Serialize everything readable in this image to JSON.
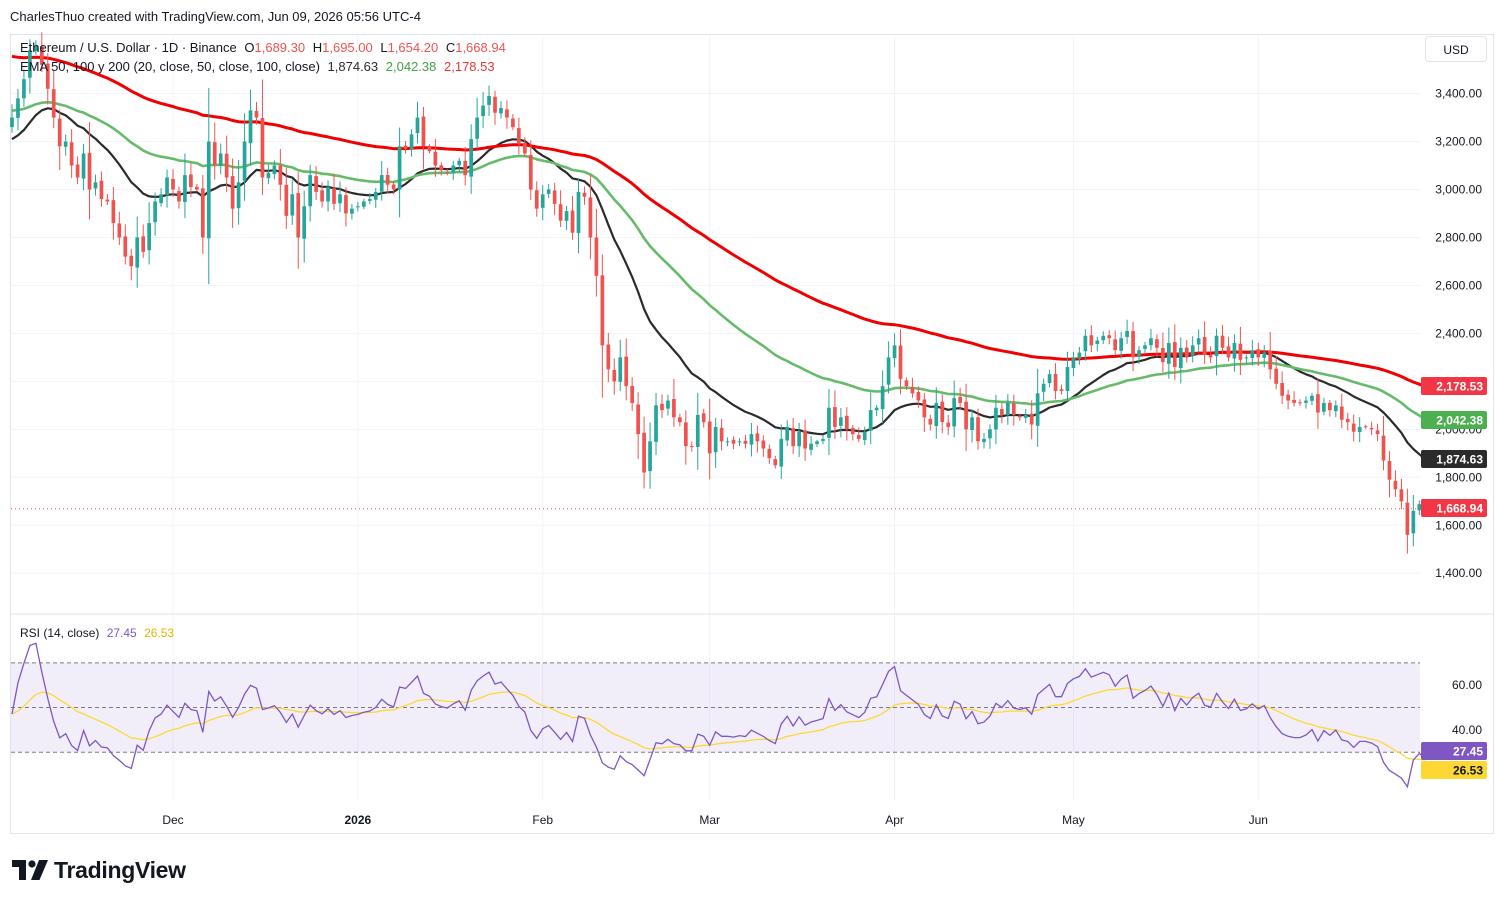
{
  "header": {
    "byline": "CharlesThuo created with TradingView.com, Jun 09, 2026 05:56 UTC-4"
  },
  "legend": {
    "symbol": "Ethereum / U.S. Dollar · 1D · Binance",
    "open_label": "O",
    "open": "1,689.30",
    "high_label": "H",
    "high": "1,695.00",
    "low_label": "L",
    "low": "1,654.20",
    "close_label": "C",
    "close": "1,668.94",
    "ema_title": "EMA 50, 100 y 200 (20, close, 50, close, 100, close)",
    "ema_values": [
      "1,874.63",
      "2,042.38",
      "2,178.53"
    ],
    "rsi_title": "RSI (14, close)",
    "rsi_values": [
      "27.45",
      "26.53"
    ]
  },
  "currency_button": "USD",
  "brand": {
    "name": "TradingView"
  },
  "colors": {
    "up": "#26a69a",
    "down": "#ef5350",
    "ema_fast": "#2b2b2b",
    "ema_mid": "#66bb6a",
    "ema_slow": "#f00000",
    "rsi": "#7e57c2",
    "rsi_ma": "#fdd835",
    "grid": "#f0f3fa",
    "text": "#131722"
  },
  "chart_data": [
    {
      "type": "candlestick",
      "title": "Ethereum / U.S. Dollar · 1D · Binance",
      "ylim": [
        1230,
        3640
      ],
      "yticks": [
        1400,
        1600,
        1800,
        2000,
        2200,
        2400,
        2600,
        2800,
        3000,
        3200,
        3400
      ],
      "ytick_labels": [
        "1,400.00",
        "1,600.00",
        "1,800.00",
        "2,000.00",
        "2,200.00",
        "2,400.00",
        "2,600.00",
        "2,800.00",
        "3,000.00",
        "3,200.00",
        "3,400.00"
      ],
      "x_labels": [
        "Dec",
        "2026",
        "Feb",
        "Mar",
        "Apr",
        "May",
        "Jun"
      ],
      "x_label_dates": [
        "2025-12-01",
        "2026-01-01",
        "2026-02-01",
        "2026-03-01",
        "2026-04-01",
        "2026-05-01",
        "2026-06-01"
      ],
      "first_date": "2025-11-04",
      "last_date": "2026-06-09",
      "closes": [
        3300,
        3380,
        3460,
        3580,
        3600,
        3520,
        3420,
        3300,
        3180,
        3200,
        3100,
        3050,
        3150,
        3000,
        3030,
        2960,
        2950,
        2860,
        2800,
        2720,
        2680,
        2800,
        2740,
        2860,
        2950,
        2980,
        3050,
        3000,
        2950,
        3060,
        3010,
        3000,
        2800,
        3200,
        3100,
        3150,
        3050,
        2920,
        3030,
        3200,
        3330,
        3300,
        3050,
        3070,
        3100,
        3020,
        2890,
        2980,
        2800,
        2930,
        3060,
        2990,
        2950,
        3010,
        2940,
        2980,
        2900,
        2920,
        2930,
        2950,
        2960,
        2990,
        3060,
        3020,
        3000,
        3180,
        3170,
        3230,
        3300,
        3180,
        3160,
        3100,
        3080,
        3070,
        3100,
        3120,
        3060,
        3210,
        3300,
        3350,
        3390,
        3320,
        3340,
        3300,
        3260,
        3190,
        3150,
        3000,
        2920,
        2980,
        3000,
        2940,
        2870,
        2910,
        2820,
        2990,
        2970,
        2800,
        2640,
        2350,
        2250,
        2200,
        2300,
        2180,
        2110,
        1980,
        1820,
        1950,
        2100,
        2080,
        2120,
        2050,
        2030,
        1930,
        1930,
        2060,
        2030,
        1900,
        2010,
        1950,
        1950,
        1940,
        1950,
        1940,
        1980,
        1950,
        1920,
        1880,
        1850,
        1960,
        2010,
        1930,
        1990,
        1920,
        1940,
        1950,
        1960,
        2090,
        2010,
        2050,
        2000,
        1980,
        1960,
        1990,
        2080,
        2090,
        2180,
        2300,
        2350,
        2210,
        2180,
        2150,
        2120,
        2050,
        2020,
        2110,
        2030,
        2010,
        2130,
        2110,
        2000,
        2050,
        1950,
        1960,
        2000,
        2090,
        2060,
        2110,
        2060,
        2050,
        2060,
        2020,
        2150,
        2190,
        2230,
        2160,
        2160,
        2260,
        2300,
        2320,
        2390,
        2350,
        2370,
        2390,
        2380,
        2330,
        2380,
        2410,
        2300,
        2330,
        2350,
        2380,
        2340,
        2280,
        2360,
        2260,
        2340,
        2300,
        2350,
        2380,
        2310,
        2300,
        2390,
        2340,
        2300,
        2360,
        2290,
        2300,
        2330,
        2300,
        2320,
        2250,
        2190,
        2140,
        2120,
        2110,
        2110,
        2120,
        2140,
        2070,
        2110,
        2080,
        2100,
        2040,
        2030,
        1990,
        2010,
        2010,
        2000,
        1980,
        1870,
        1790,
        1750,
        1700,
        1560,
        1660,
        1688,
        1668.94
      ]
    },
    {
      "type": "line",
      "title": "EMA 50, 100 y 200 (20, close, 50, close, 100, close)",
      "series": [
        {
          "name": "EMA 20",
          "last": 1874.63
        },
        {
          "name": "EMA 50",
          "last": 2042.38
        },
        {
          "name": "EMA 100",
          "last": 2178.53
        }
      ]
    },
    {
      "type": "line",
      "title": "RSI (14, close)",
      "ylim": [
        10,
        82
      ],
      "bands": [
        30,
        50,
        70
      ],
      "yticks": [
        40,
        60
      ],
      "ytick_labels": [
        "40.00",
        "60.00"
      ],
      "series": [
        {
          "name": "RSI",
          "last": 27.45
        },
        {
          "name": "RSI MA",
          "last": 26.53
        }
      ]
    }
  ]
}
